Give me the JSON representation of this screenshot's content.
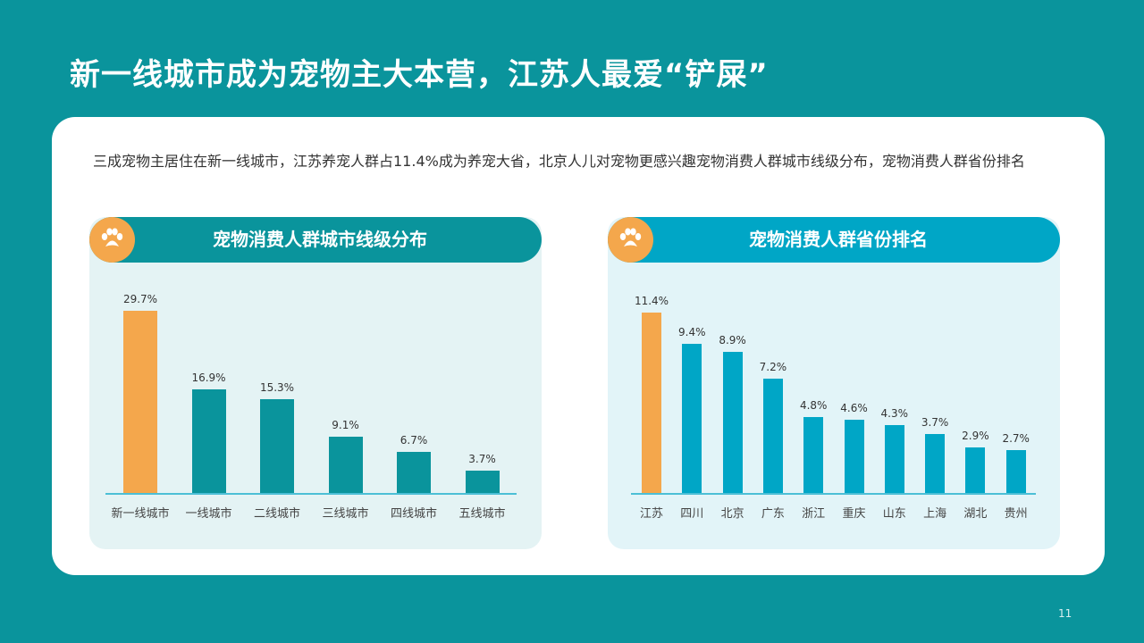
{
  "slide": {
    "title": "新一线城市成为宠物主大本营，江苏人最爱“铲屎”",
    "description": "三成宠物主居住在新一线城市，江苏养宠人群占11.4%成为养宠大省，北京人儿对宠物更感兴趣宠物消费人群城市线级分布，宠物消费人群省份排名",
    "page_number": "11",
    "colors": {
      "background": "#0a949c",
      "highlight": "#f4a74c",
      "teal": "#0a949c",
      "cyan": "#00a6c6"
    }
  },
  "panels": [
    {
      "title": "宠物消费人群城市线级分布",
      "icon": "paw-icon"
    },
    {
      "title": "宠物消费人群省份排名",
      "icon": "paw-icon"
    }
  ],
  "chart_data": [
    {
      "type": "bar",
      "title": "宠物消费人群城市线级分布",
      "categories": [
        "新一线城市",
        "一线城市",
        "二线城市",
        "三线城市",
        "四线城市",
        "五线城市"
      ],
      "values": [
        29.7,
        16.9,
        15.3,
        9.1,
        6.7,
        3.7
      ],
      "labels": [
        "29.7%",
        "16.9%",
        "15.3%",
        "9.1%",
        "6.7%",
        "3.7%"
      ],
      "unit": "%",
      "highlight_index": 0,
      "colors": {
        "highlight": "#f4a74c",
        "default": "#0a949c"
      },
      "grid": false,
      "legend": "none"
    },
    {
      "type": "bar",
      "title": "宠物消费人群省份排名",
      "categories": [
        "江苏",
        "四川",
        "北京",
        "广东",
        "浙江",
        "重庆",
        "山东",
        "上海",
        "湖北",
        "贵州"
      ],
      "values": [
        11.4,
        9.4,
        8.9,
        7.2,
        4.8,
        4.6,
        4.3,
        3.7,
        2.9,
        2.7
      ],
      "labels": [
        "11.4%",
        "9.4%",
        "8.9%",
        "7.2%",
        "4.8%",
        "4.6%",
        "4.3%",
        "3.7%",
        "2.9%",
        "2.7%"
      ],
      "unit": "%",
      "highlight_index": 0,
      "colors": {
        "highlight": "#f4a74c",
        "default": "#00a6c6"
      },
      "grid": false,
      "legend": "none"
    }
  ]
}
